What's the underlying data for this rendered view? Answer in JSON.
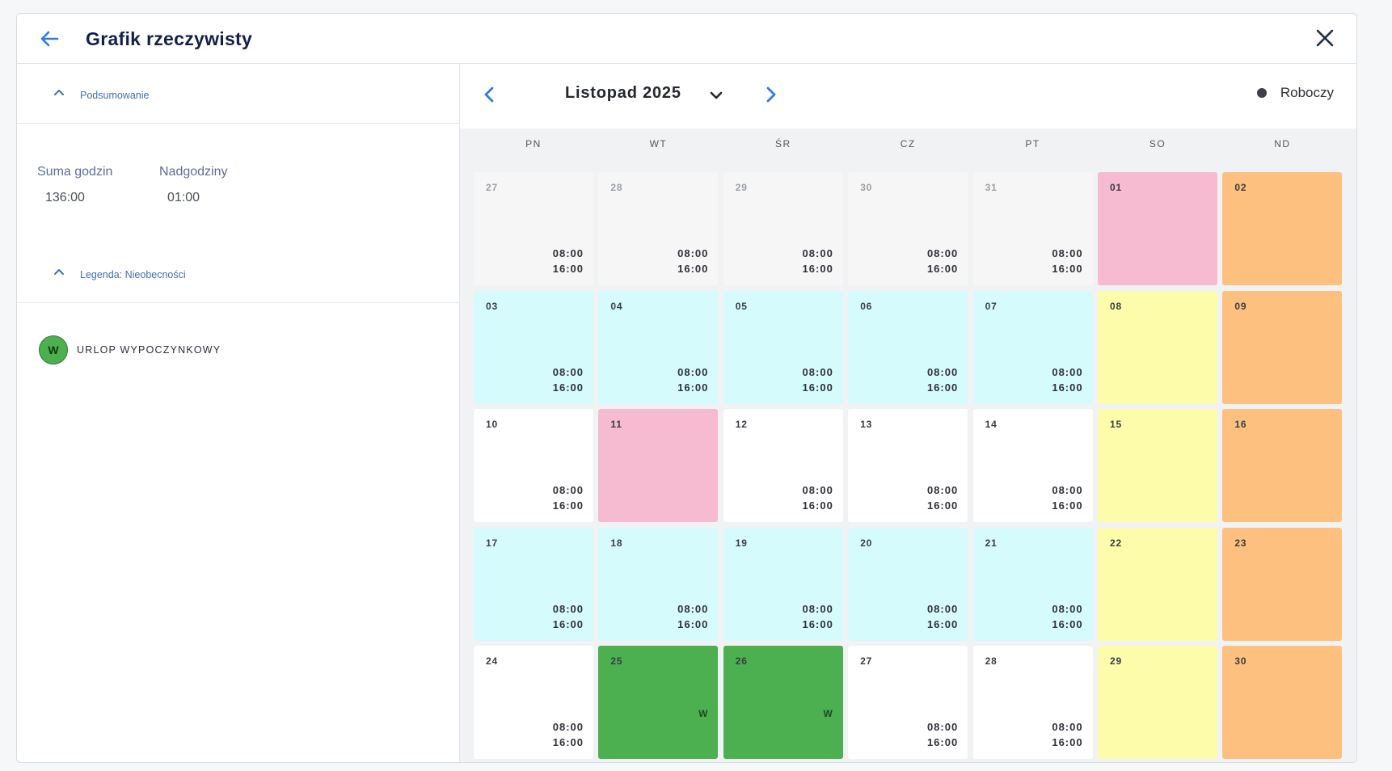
{
  "header": {
    "title": "Grafik rzeczywisty"
  },
  "summary": {
    "section_label": "Podsumowanie",
    "total_label": "Suma godzin",
    "total_value": "136:00",
    "overtime_label": "Nadgodziny",
    "overtime_value": "01:00"
  },
  "legend": {
    "section_label": "Legenda: Nieobecności",
    "items": [
      {
        "code": "W",
        "label": "URLOP WYPOCZYNKOWY",
        "color": "#4caf50"
      }
    ]
  },
  "calendar": {
    "month_label": "Listopad 2025",
    "type_legend": "Roboczy",
    "weekdays": [
      "PN",
      "WT",
      "ŚR",
      "CZ",
      "PT",
      "SO",
      "ND"
    ],
    "colors": {
      "out": "#f6f6f6",
      "regular": "#ffffff",
      "cyan": "#d6fbfd",
      "holiday": "#f6bbd0",
      "saturday": "#fdfcab",
      "sunday": "#fdc07f",
      "leave": "#4caf50"
    },
    "weeks": [
      [
        {
          "day": "27",
          "kind": "out",
          "start": "08:00",
          "end": "16:00"
        },
        {
          "day": "28",
          "kind": "out",
          "start": "08:00",
          "end": "16:00"
        },
        {
          "day": "29",
          "kind": "out",
          "start": "08:00",
          "end": "16:00"
        },
        {
          "day": "30",
          "kind": "out",
          "start": "08:00",
          "end": "16:00"
        },
        {
          "day": "31",
          "kind": "out",
          "start": "08:00",
          "end": "16:00"
        },
        {
          "day": "01",
          "kind": "holiday"
        },
        {
          "day": "02",
          "kind": "sunday"
        }
      ],
      [
        {
          "day": "03",
          "kind": "cyan",
          "start": "08:00",
          "end": "16:00"
        },
        {
          "day": "04",
          "kind": "cyan",
          "start": "08:00",
          "end": "16:00"
        },
        {
          "day": "05",
          "kind": "cyan",
          "start": "08:00",
          "end": "16:00"
        },
        {
          "day": "06",
          "kind": "cyan",
          "start": "08:00",
          "end": "16:00"
        },
        {
          "day": "07",
          "kind": "cyan",
          "start": "08:00",
          "end": "16:00"
        },
        {
          "day": "08",
          "kind": "saturday"
        },
        {
          "day": "09",
          "kind": "sunday"
        }
      ],
      [
        {
          "day": "10",
          "kind": "regular",
          "start": "08:00",
          "end": "16:00"
        },
        {
          "day": "11",
          "kind": "holiday"
        },
        {
          "day": "12",
          "kind": "regular",
          "start": "08:00",
          "end": "16:00"
        },
        {
          "day": "13",
          "kind": "regular",
          "start": "08:00",
          "end": "16:00"
        },
        {
          "day": "14",
          "kind": "regular",
          "start": "08:00",
          "end": "16:00"
        },
        {
          "day": "15",
          "kind": "saturday"
        },
        {
          "day": "16",
          "kind": "sunday"
        }
      ],
      [
        {
          "day": "17",
          "kind": "cyan",
          "start": "08:00",
          "end": "16:00"
        },
        {
          "day": "18",
          "kind": "cyan",
          "start": "08:00",
          "end": "16:00"
        },
        {
          "day": "19",
          "kind": "cyan",
          "start": "08:00",
          "end": "16:00"
        },
        {
          "day": "20",
          "kind": "cyan",
          "start": "08:00",
          "end": "16:00"
        },
        {
          "day": "21",
          "kind": "cyan",
          "start": "08:00",
          "end": "16:00"
        },
        {
          "day": "22",
          "kind": "saturday"
        },
        {
          "day": "23",
          "kind": "sunday"
        }
      ],
      [
        {
          "day": "24",
          "kind": "regular",
          "start": "08:00",
          "end": "16:00"
        },
        {
          "day": "25",
          "kind": "leave",
          "code": "W"
        },
        {
          "day": "26",
          "kind": "leave",
          "code": "W"
        },
        {
          "day": "27",
          "kind": "regular",
          "start": "08:00",
          "end": "16:00"
        },
        {
          "day": "28",
          "kind": "regular",
          "start": "08:00",
          "end": "16:00"
        },
        {
          "day": "29",
          "kind": "saturday"
        },
        {
          "day": "30",
          "kind": "sunday"
        }
      ]
    ]
  }
}
